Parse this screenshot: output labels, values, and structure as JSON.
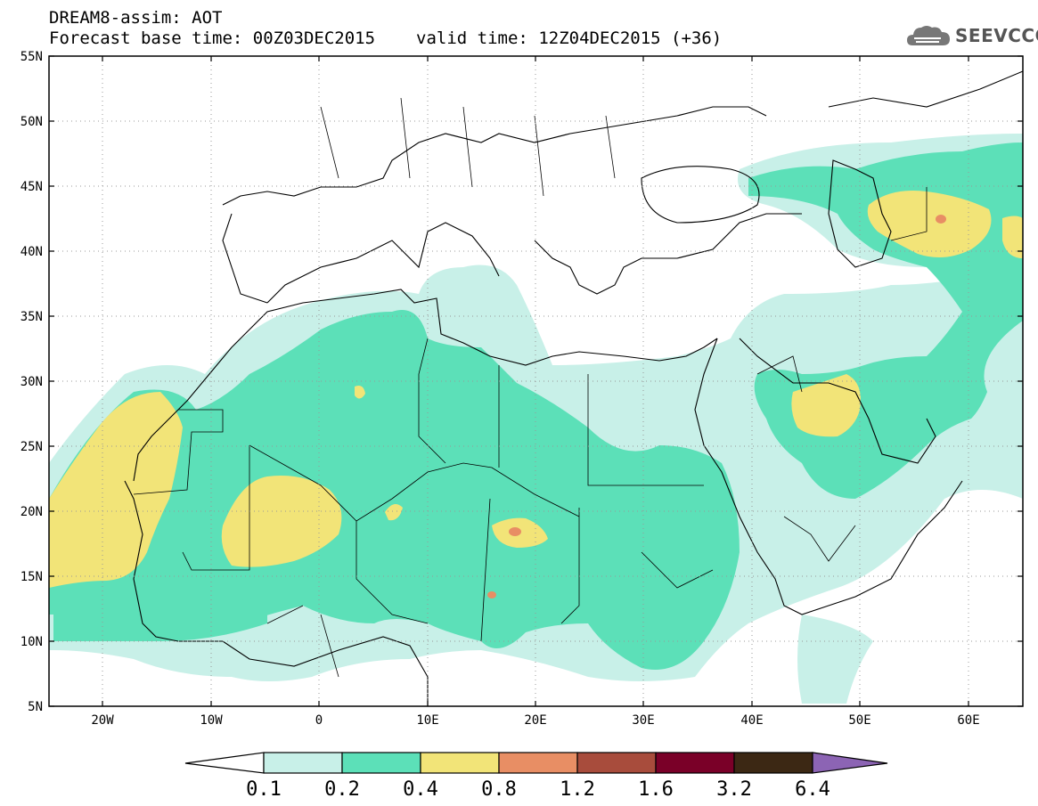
{
  "header": {
    "title_line1": "DREAM8-assim: AOT",
    "forecast_base": "Forecast base time: 00Z03DEC2015",
    "valid_time": "valid time: 12Z04DEC2015 (+36)",
    "logo_text": "SEEVCCC"
  },
  "map": {
    "projection": "lat-lon",
    "lon_range": [
      -25,
      65
    ],
    "lat_range": [
      5,
      55
    ],
    "lat_labels": [
      "55N",
      "50N",
      "45N",
      "40N",
      "35N",
      "30N",
      "25N",
      "20N",
      "15N",
      "10N",
      "5N"
    ],
    "lon_labels": [
      "20W",
      "10W",
      "0",
      "10E",
      "20E",
      "30E",
      "40E",
      "50E",
      "60E"
    ],
    "grid": "dotted every 10 degrees"
  },
  "legend": {
    "levels": [
      "0.1",
      "0.2",
      "0.4",
      "0.8",
      "1.2",
      "1.6",
      "3.2",
      "6.4"
    ],
    "colors": [
      "#ffffff",
      "#c8f0e8",
      "#5ce0b8",
      "#f2e478",
      "#e88e64",
      "#a84c3c",
      "#7a0028",
      "#3c2814",
      "#8c64b4"
    ]
  },
  "fields": {
    "level_0.1_color": "#c8f0e8",
    "level_0.2_color": "#5ce0b8",
    "level_0.4_color": "#f2e478",
    "level_0.8_color": "#e88e64"
  }
}
